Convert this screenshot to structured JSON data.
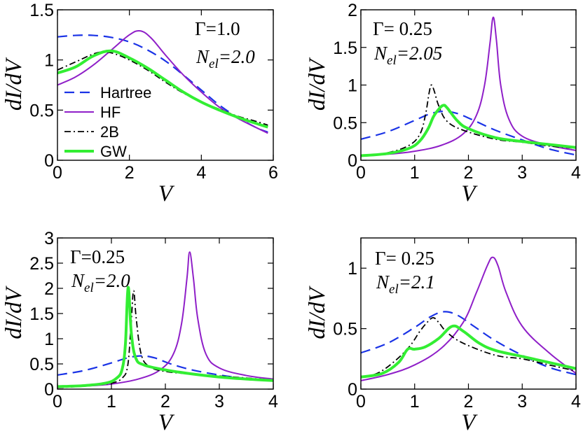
{
  "chart_data": [
    {
      "type": "line",
      "id": "top-left",
      "xlabel": "V",
      "ylabel": "dI/dV",
      "xlim": [
        0,
        6
      ],
      "ylim": [
        0,
        1.5
      ],
      "xticks": [
        "0",
        "2",
        "4",
        "6"
      ],
      "yticks": [
        "0",
        "0.5",
        "1",
        "1.5"
      ],
      "annotation": {
        "gamma": "Γ=1.0",
        "nel_base": "N",
        "nel_sub": "el",
        "nel_value": "=2.0"
      },
      "legend": true,
      "series": [
        {
          "name": "Hartree",
          "points": [
            [
              0,
              1.23
            ],
            [
              0.5,
              1.245
            ],
            [
              1,
              1.245
            ],
            [
              1.5,
              1.225
            ],
            [
              2,
              1.18
            ],
            [
              2.5,
              1.1
            ],
            [
              3,
              0.99
            ],
            [
              3.5,
              0.85
            ],
            [
              4,
              0.7
            ],
            [
              4.5,
              0.55
            ],
            [
              5,
              0.43
            ],
            [
              5.5,
              0.33
            ],
            [
              5.85,
              0.28
            ]
          ]
        },
        {
          "name": "HF",
          "points": [
            [
              0,
              0.75
            ],
            [
              0.5,
              0.83
            ],
            [
              1,
              0.95
            ],
            [
              1.5,
              1.1
            ],
            [
              2,
              1.25
            ],
            [
              2.3,
              1.29
            ],
            [
              2.6,
              1.22
            ],
            [
              3,
              1.05
            ],
            [
              3.5,
              0.85
            ],
            [
              4,
              0.68
            ],
            [
              4.5,
              0.53
            ],
            [
              5,
              0.42
            ],
            [
              5.5,
              0.33
            ],
            [
              5.85,
              0.27
            ]
          ]
        },
        {
          "name": "2B",
          "points": [
            [
              0,
              0.9
            ],
            [
              0.5,
              0.98
            ],
            [
              1,
              1.06
            ],
            [
              1.3,
              1.08
            ],
            [
              1.6,
              1.06
            ],
            [
              2,
              1.0
            ],
            [
              2.5,
              0.9
            ],
            [
              3,
              0.78
            ],
            [
              3.5,
              0.67
            ],
            [
              4,
              0.58
            ],
            [
              4.5,
              0.51
            ],
            [
              5,
              0.44
            ],
            [
              5.5,
              0.39
            ],
            [
              5.85,
              0.35
            ]
          ]
        },
        {
          "name": "GW",
          "points": [
            [
              0,
              0.87
            ],
            [
              0.5,
              0.93
            ],
            [
              1,
              1.04
            ],
            [
              1.5,
              1.09
            ],
            [
              2,
              1.02
            ],
            [
              2.5,
              0.92
            ],
            [
              3,
              0.8
            ],
            [
              3.5,
              0.68
            ],
            [
              4,
              0.58
            ],
            [
              4.5,
              0.5
            ],
            [
              5,
              0.43
            ],
            [
              5.5,
              0.37
            ],
            [
              5.85,
              0.33
            ]
          ]
        }
      ]
    },
    {
      "type": "line",
      "id": "top-right",
      "xlabel": "V",
      "ylabel": "dI/dV",
      "xlim": [
        0,
        4
      ],
      "ylim": [
        0,
        2
      ],
      "xticks": [
        "0",
        "1",
        "2",
        "3",
        "4"
      ],
      "yticks": [
        "0",
        "0.5",
        "1",
        "1.5",
        "2"
      ],
      "annotation": {
        "gamma": "Γ= 0.25",
        "nel_base": "N",
        "nel_sub": "el",
        "nel_value": "=2.05"
      },
      "legend": false,
      "series": [
        {
          "name": "Hartree",
          "points": [
            [
              0,
              0.28
            ],
            [
              0.5,
              0.38
            ],
            [
              1,
              0.53
            ],
            [
              1.3,
              0.62
            ],
            [
              1.55,
              0.65
            ],
            [
              1.8,
              0.62
            ],
            [
              2.1,
              0.53
            ],
            [
              2.5,
              0.4
            ],
            [
              3,
              0.27
            ],
            [
              3.5,
              0.15
            ],
            [
              4,
              0.07
            ]
          ]
        },
        {
          "name": "HF",
          "points": [
            [
              0,
              0.06
            ],
            [
              0.5,
              0.08
            ],
            [
              1,
              0.12
            ],
            [
              1.5,
              0.2
            ],
            [
              1.9,
              0.35
            ],
            [
              2.15,
              0.6
            ],
            [
              2.3,
              1.0
            ],
            [
              2.4,
              1.55
            ],
            [
              2.46,
              1.9
            ],
            [
              2.52,
              1.6
            ],
            [
              2.6,
              1.0
            ],
            [
              2.75,
              0.55
            ],
            [
              3,
              0.32
            ],
            [
              3.5,
              0.2
            ],
            [
              4,
              0.13
            ]
          ]
        },
        {
          "name": "2B",
          "points": [
            [
              0,
              0.06
            ],
            [
              0.5,
              0.1
            ],
            [
              0.9,
              0.2
            ],
            [
              1.1,
              0.35
            ],
            [
              1.2,
              0.6
            ],
            [
              1.27,
              0.9
            ],
            [
              1.31,
              1.0
            ],
            [
              1.36,
              0.93
            ],
            [
              1.45,
              0.72
            ],
            [
              1.6,
              0.52
            ],
            [
              1.9,
              0.4
            ],
            [
              2.5,
              0.28
            ],
            [
              3,
              0.24
            ],
            [
              3.5,
              0.19
            ],
            [
              4,
              0.16
            ]
          ]
        },
        {
          "name": "GW",
          "points": [
            [
              0,
              0.06
            ],
            [
              0.5,
              0.09
            ],
            [
              0.9,
              0.16
            ],
            [
              1.1,
              0.26
            ],
            [
              1.25,
              0.42
            ],
            [
              1.35,
              0.58
            ],
            [
              1.45,
              0.68
            ],
            [
              1.53,
              0.73
            ],
            [
              1.6,
              0.7
            ],
            [
              1.8,
              0.52
            ],
            [
              2,
              0.42
            ],
            [
              2.5,
              0.3
            ],
            [
              3,
              0.25
            ],
            [
              3.5,
              0.21
            ],
            [
              4,
              0.17
            ]
          ]
        }
      ]
    },
    {
      "type": "line",
      "id": "bottom-left",
      "xlabel": "V",
      "ylabel": "dI/dV",
      "xlim": [
        0,
        4
      ],
      "ylim": [
        0,
        3
      ],
      "xticks": [
        "0",
        "1",
        "2",
        "3",
        "4"
      ],
      "yticks": [
        "0",
        "0.5",
        "1",
        "1.5",
        "2",
        "2.5",
        "3"
      ],
      "annotation": {
        "gamma": "Γ=0.25",
        "nel_base": "N",
        "nel_sub": "el",
        "nel_value": "=2.0"
      },
      "legend": false,
      "series": [
        {
          "name": "Hartree",
          "points": [
            [
              0,
              0.28
            ],
            [
              0.5,
              0.37
            ],
            [
              1,
              0.52
            ],
            [
              1.3,
              0.62
            ],
            [
              1.55,
              0.66
            ],
            [
              1.8,
              0.62
            ],
            [
              2.1,
              0.5
            ],
            [
              2.5,
              0.38
            ],
            [
              3,
              0.28
            ],
            [
              3.5,
              0.21
            ],
            [
              4,
              0.17
            ]
          ]
        },
        {
          "name": "HF",
          "points": [
            [
              0,
              0.04
            ],
            [
              0.5,
              0.06
            ],
            [
              1,
              0.1
            ],
            [
              1.5,
              0.2
            ],
            [
              1.9,
              0.38
            ],
            [
              2.15,
              0.7
            ],
            [
              2.3,
              1.3
            ],
            [
              2.4,
              2.2
            ],
            [
              2.45,
              2.72
            ],
            [
              2.52,
              2.2
            ],
            [
              2.6,
              1.4
            ],
            [
              2.75,
              0.7
            ],
            [
              3,
              0.42
            ],
            [
              3.5,
              0.27
            ],
            [
              4,
              0.2
            ]
          ]
        },
        {
          "name": "2B",
          "points": [
            [
              0,
              0.03
            ],
            [
              0.5,
              0.06
            ],
            [
              1,
              0.12
            ],
            [
              1.2,
              0.22
            ],
            [
              1.3,
              0.45
            ],
            [
              1.36,
              1.2
            ],
            [
              1.41,
              1.95
            ],
            [
              1.46,
              1.4
            ],
            [
              1.55,
              0.7
            ],
            [
              1.7,
              0.45
            ],
            [
              2,
              0.35
            ],
            [
              2.5,
              0.3
            ],
            [
              3,
              0.26
            ],
            [
              3.5,
              0.22
            ],
            [
              4,
              0.18
            ]
          ]
        },
        {
          "name": "GW",
          "points": [
            [
              0,
              0.05
            ],
            [
              0.5,
              0.07
            ],
            [
              0.9,
              0.12
            ],
            [
              1.1,
              0.22
            ],
            [
              1.2,
              0.4
            ],
            [
              1.26,
              0.9
            ],
            [
              1.31,
              2.02
            ],
            [
              1.37,
              1.1
            ],
            [
              1.45,
              0.62
            ],
            [
              1.6,
              0.48
            ],
            [
              2,
              0.38
            ],
            [
              2.5,
              0.3
            ],
            [
              3,
              0.24
            ],
            [
              3.5,
              0.2
            ],
            [
              4,
              0.17
            ]
          ]
        }
      ]
    },
    {
      "type": "line",
      "id": "bottom-right",
      "xlabel": "V",
      "ylabel": "dI/dV",
      "xlim": [
        0,
        4
      ],
      "ylim": [
        0,
        1.25
      ],
      "xticks": [
        "0",
        "1",
        "2",
        "3",
        "4"
      ],
      "yticks": [
        "0",
        "0.5",
        "1"
      ],
      "annotation": {
        "gamma": "Γ= 0.25",
        "nel_base": "N",
        "nel_sub": "el",
        "nel_value": "=2.1"
      },
      "legend": false,
      "series": [
        {
          "name": "Hartree",
          "points": [
            [
              0,
              0.3
            ],
            [
              0.5,
              0.38
            ],
            [
              1,
              0.51
            ],
            [
              1.3,
              0.6
            ],
            [
              1.55,
              0.64
            ],
            [
              1.8,
              0.61
            ],
            [
              2.1,
              0.52
            ],
            [
              2.5,
              0.4
            ],
            [
              3,
              0.28
            ],
            [
              3.5,
              0.18
            ],
            [
              4,
              0.12
            ]
          ]
        },
        {
          "name": "HF",
          "points": [
            [
              0,
              0.07
            ],
            [
              0.5,
              0.12
            ],
            [
              1,
              0.2
            ],
            [
              1.5,
              0.34
            ],
            [
              1.9,
              0.55
            ],
            [
              2.15,
              0.8
            ],
            [
              2.35,
              1.02
            ],
            [
              2.45,
              1.09
            ],
            [
              2.55,
              1.02
            ],
            [
              2.7,
              0.8
            ],
            [
              3,
              0.52
            ],
            [
              3.5,
              0.3
            ],
            [
              4,
              0.13
            ]
          ]
        },
        {
          "name": "2B",
          "points": [
            [
              0,
              0.1
            ],
            [
              0.3,
              0.13
            ],
            [
              0.6,
              0.22
            ],
            [
              0.9,
              0.35
            ],
            [
              1.1,
              0.48
            ],
            [
              1.25,
              0.56
            ],
            [
              1.35,
              0.59
            ],
            [
              1.45,
              0.55
            ],
            [
              1.6,
              0.47
            ],
            [
              1.9,
              0.38
            ],
            [
              2.5,
              0.28
            ],
            [
              3,
              0.25
            ],
            [
              3.5,
              0.2
            ],
            [
              4,
              0.15
            ]
          ]
        },
        {
          "name": "GW",
          "points": [
            [
              0,
              0.1
            ],
            [
              0.4,
              0.13
            ],
            [
              0.7,
              0.22
            ],
            [
              0.87,
              0.33
            ],
            [
              1.0,
              0.33
            ],
            [
              1.2,
              0.35
            ],
            [
              1.45,
              0.42
            ],
            [
              1.7,
              0.52
            ],
            [
              1.9,
              0.48
            ],
            [
              2.2,
              0.38
            ],
            [
              2.5,
              0.32
            ],
            [
              3,
              0.27
            ],
            [
              3.5,
              0.22
            ],
            [
              4,
              0.17
            ]
          ]
        }
      ]
    }
  ],
  "legend_entries": [
    "Hartree",
    "HF",
    "2B",
    "GW"
  ],
  "colors": {
    "Hartree": "#1a33e6",
    "HF": "#8f1fc8",
    "2B": "#000000",
    "GW": "#33ee33"
  }
}
